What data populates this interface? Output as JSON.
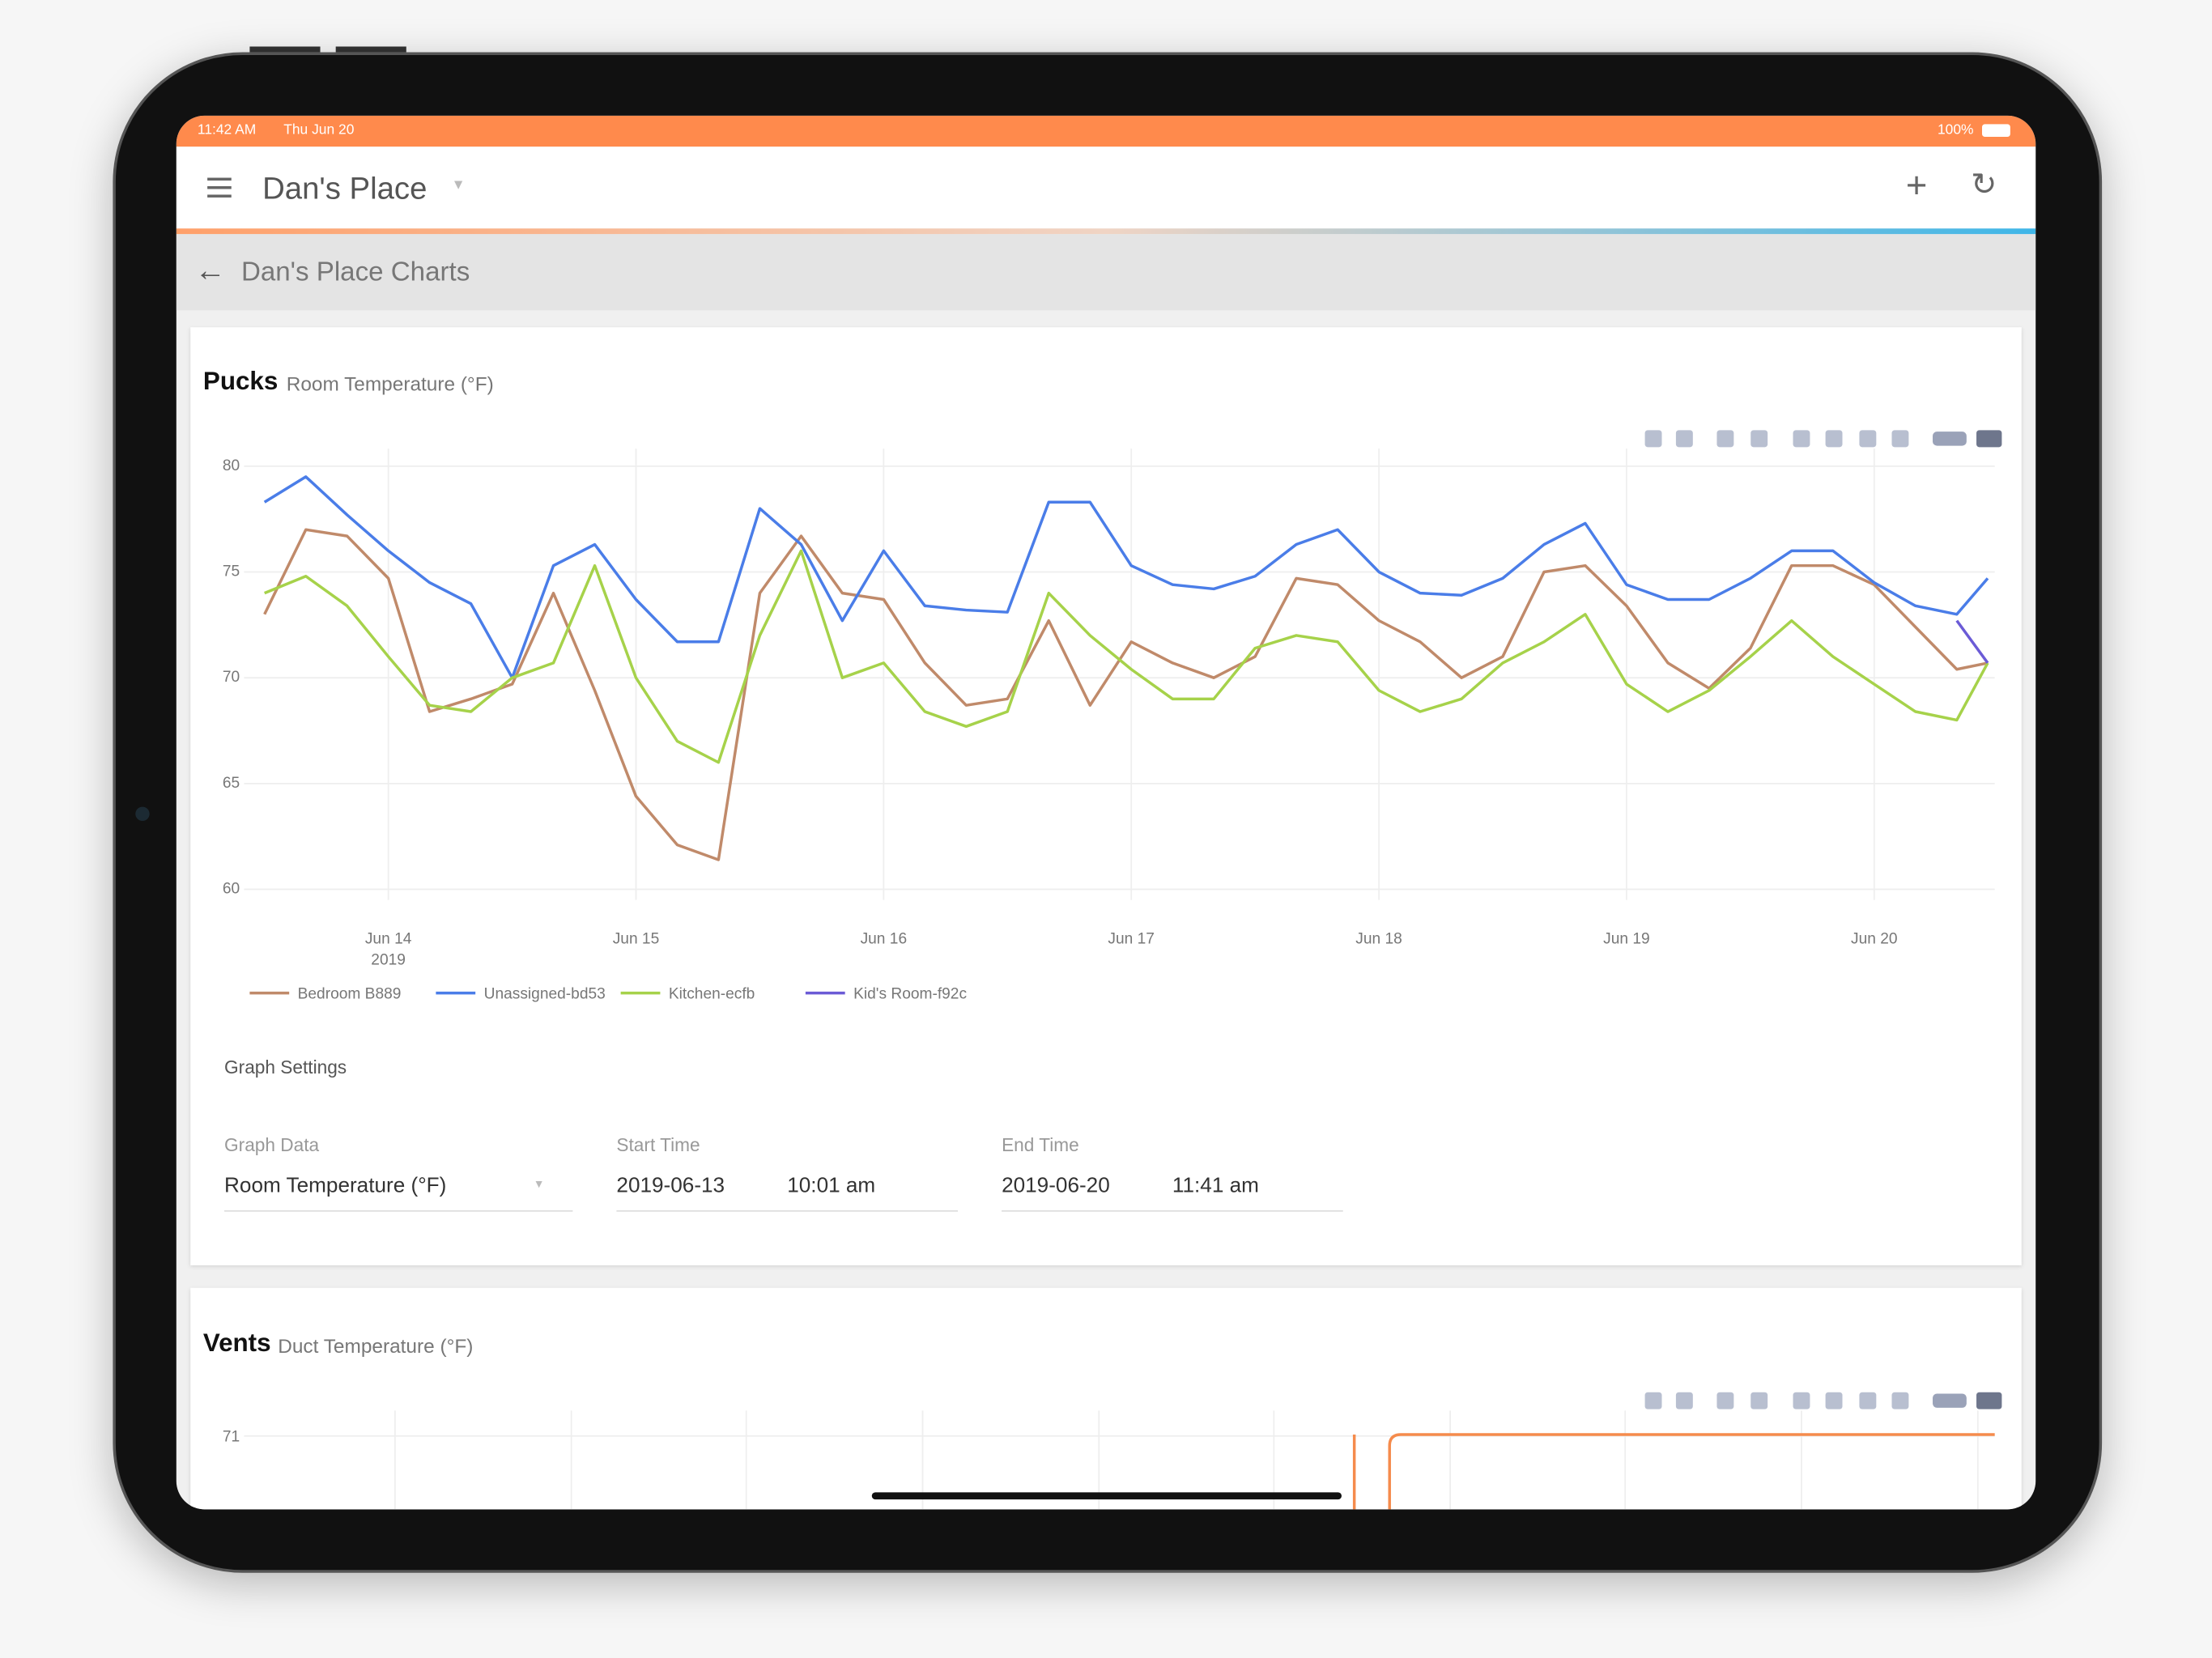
{
  "status_bar": {
    "time": "11:42 AM",
    "date": "Thu Jun 20",
    "battery": "100%"
  },
  "app_bar": {
    "title": "Dan's Place"
  },
  "sub_header": {
    "title": "Dan's Place Charts"
  },
  "pucks_card": {
    "title": "Pucks",
    "subtitle": "Room Temperature (°F)",
    "chart_data": {
      "type": "line",
      "x": [
        "2019-06-13 12:00",
        "2019-06-13 16:00",
        "2019-06-13 20:00",
        "2019-06-14 00:00",
        "2019-06-14 04:00",
        "2019-06-14 08:00",
        "2019-06-14 12:00",
        "2019-06-14 16:00",
        "2019-06-14 20:00",
        "2019-06-15 00:00",
        "2019-06-15 04:00",
        "2019-06-15 08:00",
        "2019-06-15 12:00",
        "2019-06-15 16:00",
        "2019-06-15 20:00",
        "2019-06-16 00:00",
        "2019-06-16 04:00",
        "2019-06-16 08:00",
        "2019-06-16 12:00",
        "2019-06-16 16:00",
        "2019-06-16 20:00",
        "2019-06-17 00:00",
        "2019-06-17 04:00",
        "2019-06-17 08:00",
        "2019-06-17 12:00",
        "2019-06-17 16:00",
        "2019-06-17 20:00",
        "2019-06-18 00:00",
        "2019-06-18 04:00",
        "2019-06-18 08:00",
        "2019-06-18 12:00",
        "2019-06-18 16:00",
        "2019-06-18 20:00",
        "2019-06-19 00:00",
        "2019-06-19 04:00",
        "2019-06-19 08:00",
        "2019-06-19 12:00",
        "2019-06-19 16:00",
        "2019-06-19 20:00",
        "2019-06-20 00:00",
        "2019-06-20 04:00",
        "2019-06-20 08:00",
        "2019-06-20 11:00"
      ],
      "series": [
        {
          "name": "Bedroom B889",
          "color": "#c08a6a",
          "values": [
            73.0,
            77.0,
            76.7,
            74.7,
            68.4,
            69.0,
            69.7,
            74.0,
            69.4,
            64.4,
            62.1,
            61.4,
            74.0,
            76.7,
            74.0,
            73.7,
            70.7,
            68.7,
            69.0,
            72.7,
            68.7,
            71.7,
            70.7,
            70.0,
            71.0,
            74.7,
            74.4,
            72.7,
            71.7,
            70.0,
            71.0,
            75.0,
            75.3,
            73.4,
            70.7,
            69.5,
            71.4,
            75.3,
            75.3,
            74.4,
            72.4,
            70.4,
            70.7
          ]
        },
        {
          "name": "Unassigned-bd53",
          "color": "#4a7de8",
          "values": [
            78.3,
            79.5,
            77.7,
            76.0,
            74.5,
            73.5,
            70.0,
            75.3,
            76.3,
            73.7,
            71.7,
            71.7,
            78.0,
            76.3,
            72.7,
            76.0,
            73.4,
            73.2,
            73.1,
            78.3,
            78.3,
            75.3,
            74.4,
            74.2,
            74.8,
            76.3,
            77.0,
            75.0,
            74.0,
            73.9,
            74.7,
            76.3,
            77.3,
            74.4,
            73.7,
            73.7,
            74.7,
            76.0,
            76.0,
            74.5,
            73.4,
            73.0,
            74.7
          ]
        },
        {
          "name": "Kitchen-ecfb",
          "color": "#a6d24a",
          "values": [
            74.0,
            74.8,
            73.4,
            71.0,
            68.7,
            68.4,
            70.0,
            70.7,
            75.3,
            70.0,
            67.0,
            66.0,
            72.0,
            76.0,
            70.0,
            70.7,
            68.4,
            67.7,
            68.4,
            74.0,
            72.0,
            70.4,
            69.0,
            69.0,
            71.4,
            72.0,
            71.7,
            69.4,
            68.4,
            69.0,
            70.7,
            71.7,
            73.0,
            69.7,
            68.4,
            69.4,
            71.0,
            72.7,
            71.0,
            69.7,
            68.4,
            68.0,
            70.7
          ]
        },
        {
          "name": "Kid's Room-f92c",
          "color": "#6b5bd6",
          "values": [
            null,
            null,
            null,
            null,
            null,
            null,
            null,
            null,
            null,
            null,
            null,
            null,
            null,
            null,
            null,
            null,
            null,
            null,
            null,
            null,
            null,
            null,
            null,
            null,
            null,
            null,
            null,
            null,
            null,
            null,
            null,
            null,
            null,
            null,
            null,
            null,
            null,
            null,
            null,
            null,
            null,
            72.7,
            70.7
          ]
        }
      ],
      "xlim": [
        "2019-06-13 10:01",
        "2019-06-20 11:41"
      ],
      "xticks": [
        {
          "value": "2019-06-14 00:00",
          "label": "Jun 14"
        },
        {
          "value": "2019-06-15 00:00",
          "label": "Jun 15"
        },
        {
          "value": "2019-06-16 00:00",
          "label": "Jun 16"
        },
        {
          "value": "2019-06-17 00:00",
          "label": "Jun 17"
        },
        {
          "value": "2019-06-18 00:00",
          "label": "Jun 18"
        },
        {
          "value": "2019-06-19 00:00",
          "label": "Jun 19"
        },
        {
          "value": "2019-06-20 00:00",
          "label": "Jun 20"
        }
      ],
      "x_year": "2019",
      "ylim": [
        59.5,
        80.5
      ],
      "yticks": [
        60,
        65,
        70,
        75,
        80
      ],
      "grid": true
    },
    "settings": {
      "heading": "Graph Settings",
      "graph_data_label": "Graph Data",
      "graph_data_value": "Room Temperature (°F)",
      "start_label": "Start Time",
      "start_date": "2019-06-13",
      "start_time": "10:01 am",
      "end_label": "End Time",
      "end_date": "2019-06-20",
      "end_time": "11:41 am"
    }
  },
  "vents_card": {
    "title": "Vents",
    "subtitle": "Duct Temperature (°F)",
    "chart_data": {
      "type": "line",
      "yticks": [
        71
      ]
    }
  }
}
